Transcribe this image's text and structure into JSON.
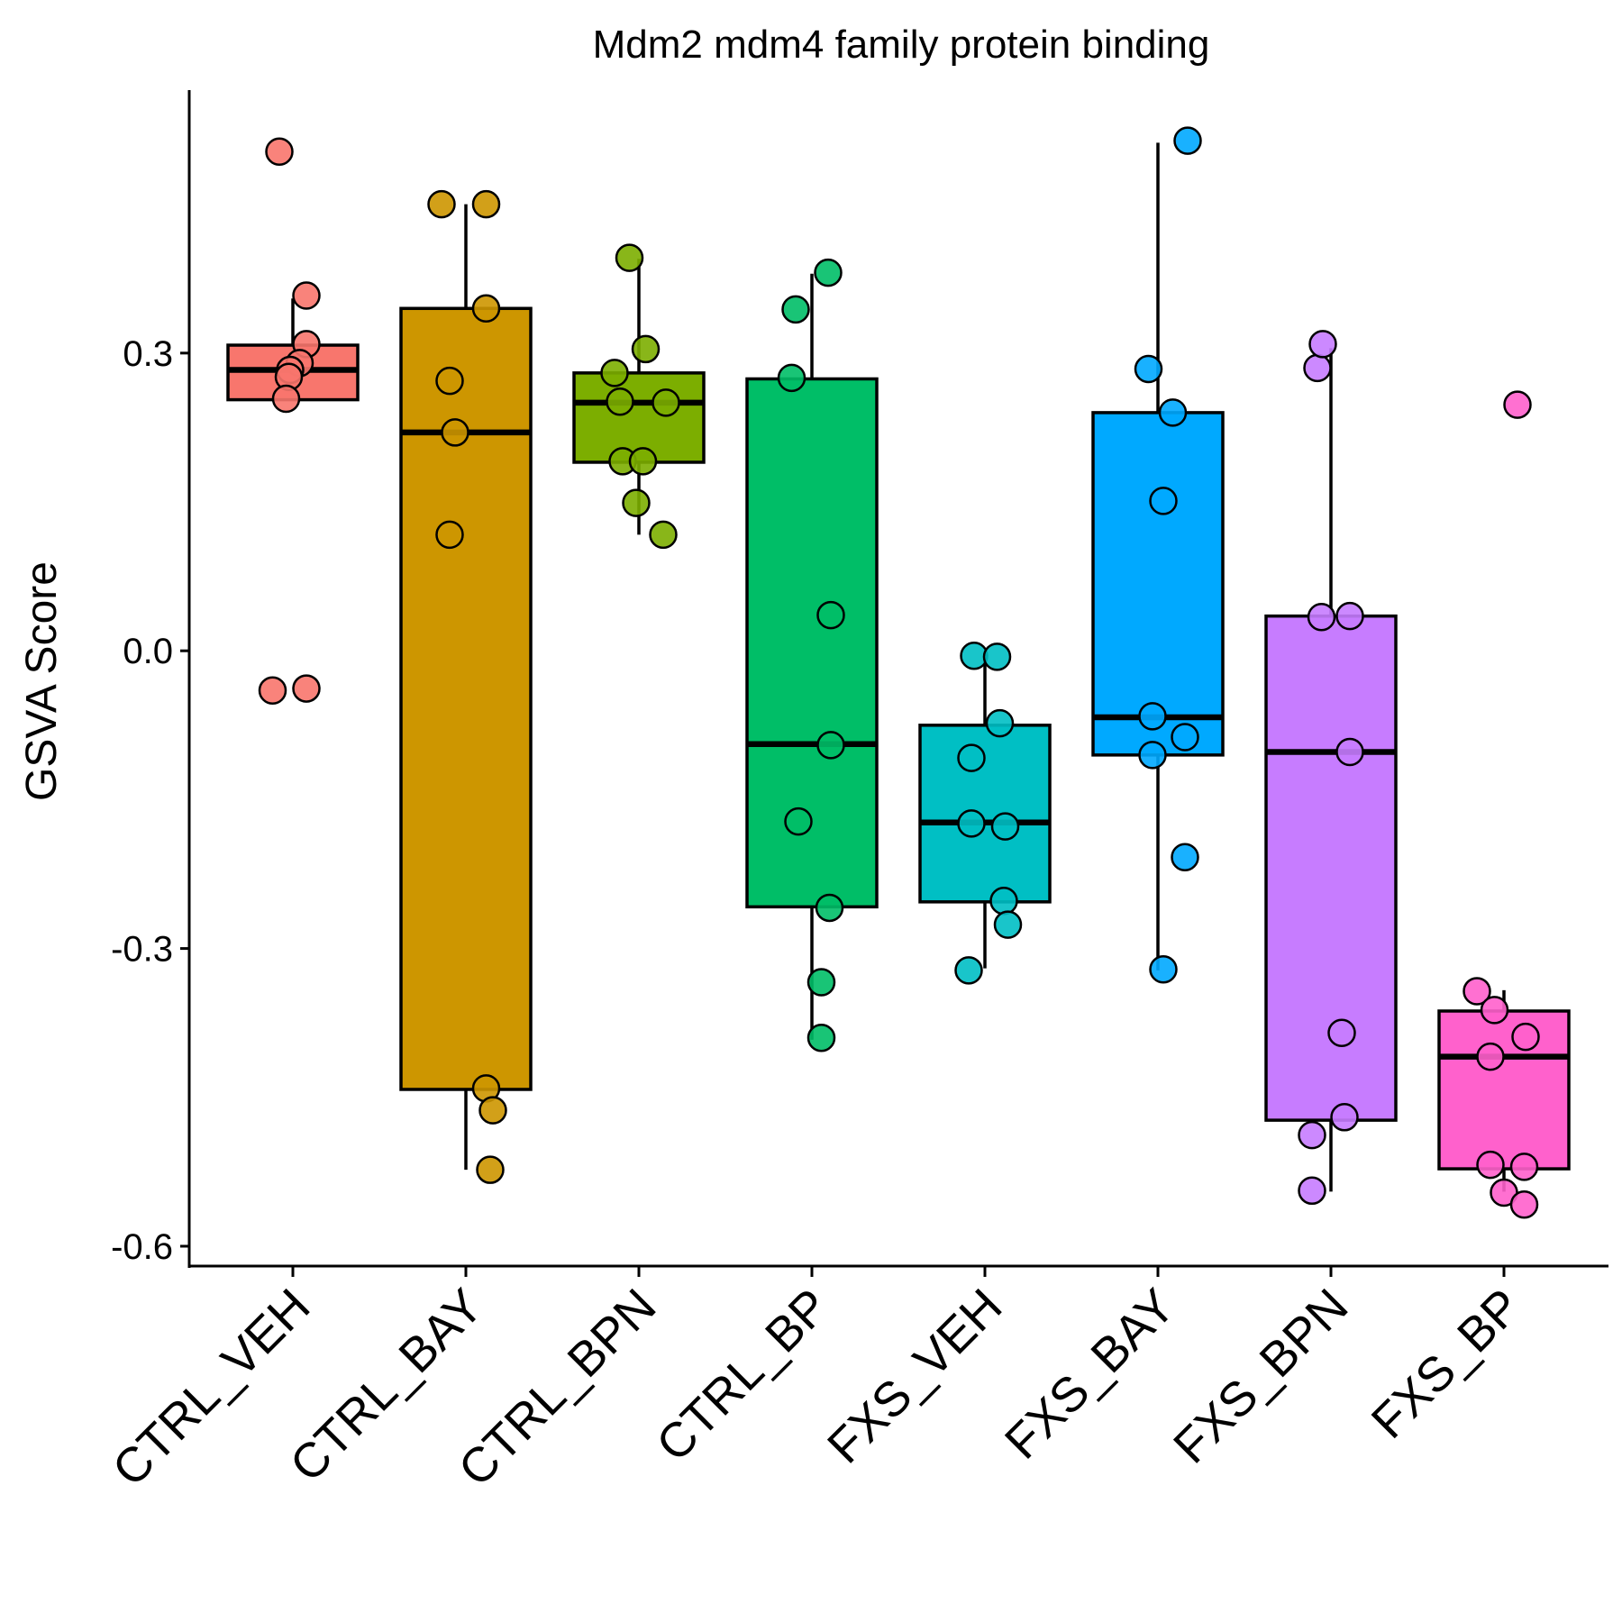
{
  "chart_data": {
    "type": "box",
    "title": "Mdm2 mdm4 family protein binding",
    "xlabel": "",
    "ylabel": "GSVA Score",
    "ylim": [
      -0.62,
      0.565
    ],
    "yticks": [
      0.3,
      0.0,
      -0.3,
      -0.6
    ],
    "ytick_labels": [
      "0.3",
      "0.0",
      "-0.3",
      "-0.6"
    ],
    "grid": false,
    "legend": "none",
    "categories": [
      "CTRL_VEH",
      "CTRL_BAY",
      "CTRL_BPN",
      "CTRL_BP",
      "FXS_VEH",
      "FXS_BAY",
      "FXS_BPN",
      "FXS_BP"
    ],
    "colors": [
      "#F8766D",
      "#CD9600",
      "#7CAE00",
      "#00BE67",
      "#00BFC4",
      "#00A9FF",
      "#C77CFF",
      "#FF61CC"
    ],
    "series": [
      {
        "box": {
          "whisker_low": 0.253,
          "q1": 0.253,
          "median": 0.283,
          "q3": 0.308,
          "whisker_high": 0.355
        },
        "points": [
          [
            -0.1,
            0.503
          ],
          [
            0.1,
            0.358
          ],
          [
            0.1,
            0.309
          ],
          [
            0.05,
            0.29
          ],
          [
            -0.02,
            0.283
          ],
          [
            -0.03,
            0.276
          ],
          [
            -0.05,
            0.254
          ],
          [
            -0.15,
            -0.04
          ],
          [
            0.1,
            -0.038
          ]
        ]
      },
      {
        "box": {
          "whisker_low": -0.523,
          "q1": -0.442,
          "median": 0.22,
          "q3": 0.345,
          "whisker_high": 0.45
        },
        "points": [
          [
            -0.18,
            0.45
          ],
          [
            0.15,
            0.45
          ],
          [
            0.15,
            0.345
          ],
          [
            -0.12,
            0.272
          ],
          [
            -0.08,
            0.22
          ],
          [
            -0.12,
            0.117
          ],
          [
            0.15,
            -0.441
          ],
          [
            0.2,
            -0.463
          ],
          [
            0.18,
            -0.523
          ]
        ]
      },
      {
        "box": {
          "whisker_low": 0.117,
          "q1": 0.19,
          "median": 0.25,
          "q3": 0.28,
          "whisker_high": 0.395
        },
        "points": [
          [
            -0.07,
            0.396
          ],
          [
            0.05,
            0.304
          ],
          [
            -0.18,
            0.28
          ],
          [
            -0.14,
            0.251
          ],
          [
            0.2,
            0.25
          ],
          [
            -0.12,
            0.191
          ],
          [
            0.03,
            0.191
          ],
          [
            -0.02,
            0.149
          ],
          [
            0.18,
            0.117
          ]
        ]
      },
      {
        "box": {
          "whisker_low": -0.392,
          "q1": -0.258,
          "median": -0.094,
          "q3": 0.274,
          "whisker_high": 0.38
        },
        "points": [
          [
            0.12,
            0.381
          ],
          [
            -0.12,
            0.344
          ],
          [
            -0.15,
            0.275
          ],
          [
            0.14,
            0.036
          ],
          [
            0.14,
            -0.095
          ],
          [
            -0.1,
            -0.172
          ],
          [
            0.13,
            -0.259
          ],
          [
            0.07,
            -0.334
          ],
          [
            0.07,
            -0.39
          ]
        ]
      },
      {
        "box": {
          "whisker_low": -0.32,
          "q1": -0.253,
          "median": -0.173,
          "q3": -0.075,
          "whisker_high": -0.01
        },
        "points": [
          [
            -0.08,
            -0.005
          ],
          [
            0.09,
            -0.006
          ],
          [
            0.11,
            -0.073
          ],
          [
            -0.1,
            -0.108
          ],
          [
            -0.1,
            -0.174
          ],
          [
            0.15,
            -0.177
          ],
          [
            0.14,
            -0.252
          ],
          [
            0.17,
            -0.276
          ],
          [
            -0.12,
            -0.322
          ]
        ]
      },
      {
        "box": {
          "whisker_low": -0.322,
          "q1": -0.105,
          "median": -0.067,
          "q3": 0.24,
          "whisker_high": 0.512
        },
        "points": [
          [
            0.22,
            0.514
          ],
          [
            -0.07,
            0.284
          ],
          [
            0.11,
            0.24
          ],
          [
            0.04,
            0.151
          ],
          [
            -0.04,
            -0.066
          ],
          [
            0.2,
            -0.087
          ],
          [
            -0.04,
            -0.105
          ],
          [
            0.2,
            -0.208
          ],
          [
            0.04,
            -0.321
          ]
        ]
      },
      {
        "box": {
          "whisker_low": -0.545,
          "q1": -0.473,
          "median": -0.102,
          "q3": 0.035,
          "whisker_high": 0.305
        },
        "points": [
          [
            -0.1,
            0.285
          ],
          [
            -0.06,
            0.309
          ],
          [
            -0.07,
            0.034
          ],
          [
            0.14,
            0.035
          ],
          [
            0.14,
            -0.102
          ],
          [
            0.08,
            -0.385
          ],
          [
            0.1,
            -0.47
          ],
          [
            -0.14,
            -0.488
          ],
          [
            -0.14,
            -0.544
          ]
        ]
      },
      {
        "box": {
          "whisker_low": -0.545,
          "q1": -0.522,
          "median": -0.409,
          "q3": -0.363,
          "whisker_high": -0.342
        },
        "points": [
          [
            0.1,
            0.248
          ],
          [
            -0.2,
            -0.343
          ],
          [
            -0.07,
            -0.362
          ],
          [
            0.16,
            -0.389
          ],
          [
            -0.1,
            -0.409
          ],
          [
            -0.1,
            -0.518
          ],
          [
            0.15,
            -0.52
          ],
          [
            0.0,
            -0.546
          ],
          [
            0.15,
            -0.558
          ]
        ]
      }
    ]
  }
}
